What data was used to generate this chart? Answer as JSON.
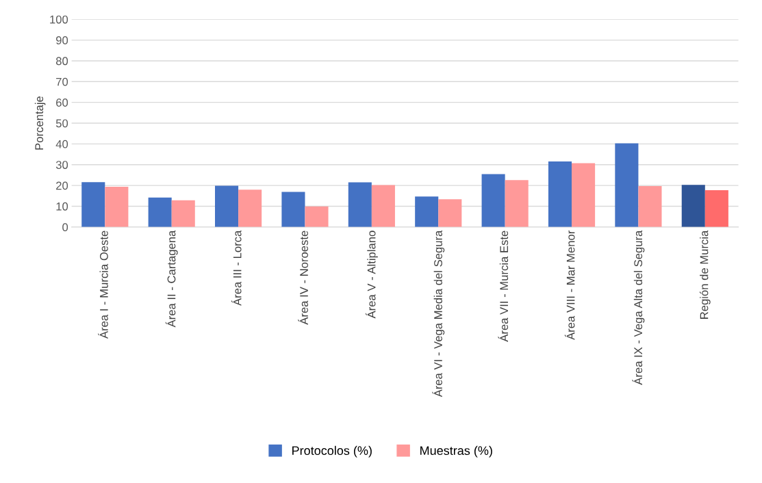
{
  "chart_data": {
    "type": "bar",
    "ylabel": "Porcentaje",
    "categories": [
      "Área I - Murcia Oeste",
      "Área II - Cartagena",
      "Área III - Lorca",
      "Área IV - Noroeste",
      "Área V - Altiplano",
      "Área VI - Vega Media del Segura",
      "Área VII - Murcia Este",
      "Área VIII - Mar Menor",
      "Área IX - Vega Alta del Segura",
      "Región de Murcia"
    ],
    "series": [
      {
        "name": "Protocolos (%)",
        "color": "#4472c4",
        "colors": [
          "#4472c4",
          "#4472c4",
          "#4472c4",
          "#4472c4",
          "#4472c4",
          "#4472c4",
          "#4472c4",
          "#4472c4",
          "#4472c4",
          "#2f5597"
        ],
        "values": [
          21.6,
          14.2,
          19.9,
          16.9,
          21.5,
          14.7,
          25.5,
          31.6,
          40.3,
          20.3
        ]
      },
      {
        "name": "Muestras (%)",
        "color": "#ff9999",
        "colors": [
          "#ff9999",
          "#ff9999",
          "#ff9999",
          "#ff9999",
          "#ff9999",
          "#ff9999",
          "#ff9999",
          "#ff9999",
          "#ff9999",
          "#ff6b6b"
        ],
        "values": [
          19.4,
          12.9,
          18.0,
          9.9,
          20.2,
          13.4,
          22.6,
          30.7,
          19.7,
          17.7
        ]
      }
    ],
    "ylim": [
      0,
      100
    ],
    "yticks": [
      0,
      10,
      20,
      30,
      40,
      50,
      60,
      70,
      80,
      90,
      100
    ],
    "grid": "y",
    "legend": "bottom"
  }
}
